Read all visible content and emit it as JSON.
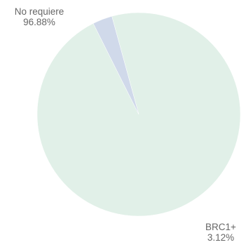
{
  "chart_data": {
    "type": "pie",
    "slices": [
      {
        "label": "No requiere",
        "value": 96.88,
        "display": "96.88%",
        "color": "#e1f0e8"
      },
      {
        "label": "BRC1+",
        "value": 3.12,
        "display": "3.12%",
        "color": "#d0d9ea"
      }
    ]
  }
}
